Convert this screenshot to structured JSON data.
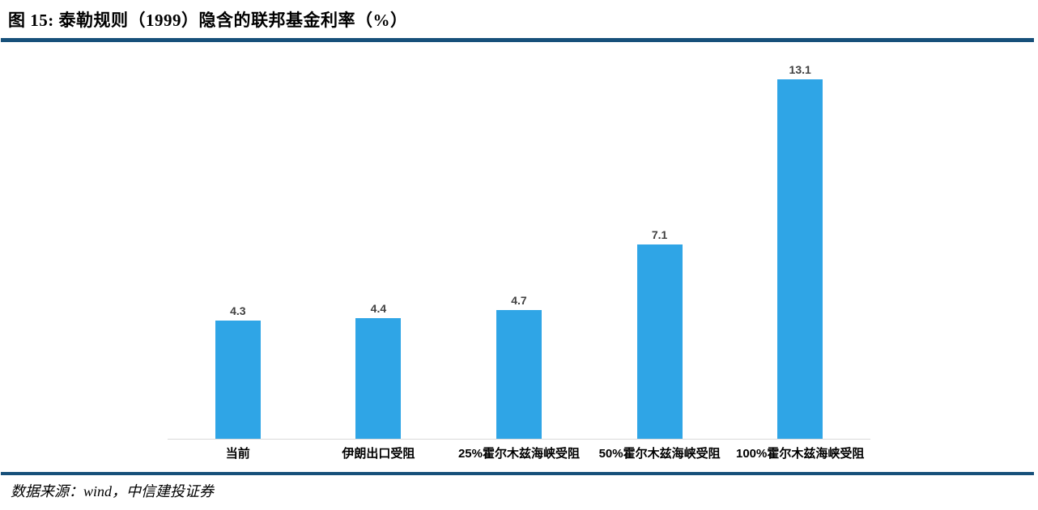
{
  "figure": {
    "title": "图 15: 泰勒规则（1999）隐含的联邦基金利率（%）",
    "source": "数据来源：wind，中信建投证券"
  },
  "chart_data": {
    "type": "bar",
    "title": "泰勒规则（1999）隐含的联邦基金利率（%）",
    "categories": [
      "当前",
      "伊朗出口受阻",
      "25%霍尔木兹海峡受阻",
      "50%霍尔木兹海峡受阻",
      "100%霍尔木兹海峡受阻"
    ],
    "values": [
      4.3,
      4.4,
      4.7,
      7.1,
      13.1
    ],
    "value_labels": [
      "4.3",
      "4.4",
      "4.7",
      "7.1",
      "13.1"
    ],
    "xlabel": "",
    "ylabel": "",
    "ylim": [
      0,
      14
    ],
    "grid": false,
    "legend": "none",
    "bar_color": "#2FA5E6",
    "axis_line_color": "#D9D9D9",
    "value_label_color": "#404040"
  },
  "theme": {
    "accent_rule_color": "#17507A",
    "text_color": "#000000",
    "background_color": "#FFFFFF"
  }
}
